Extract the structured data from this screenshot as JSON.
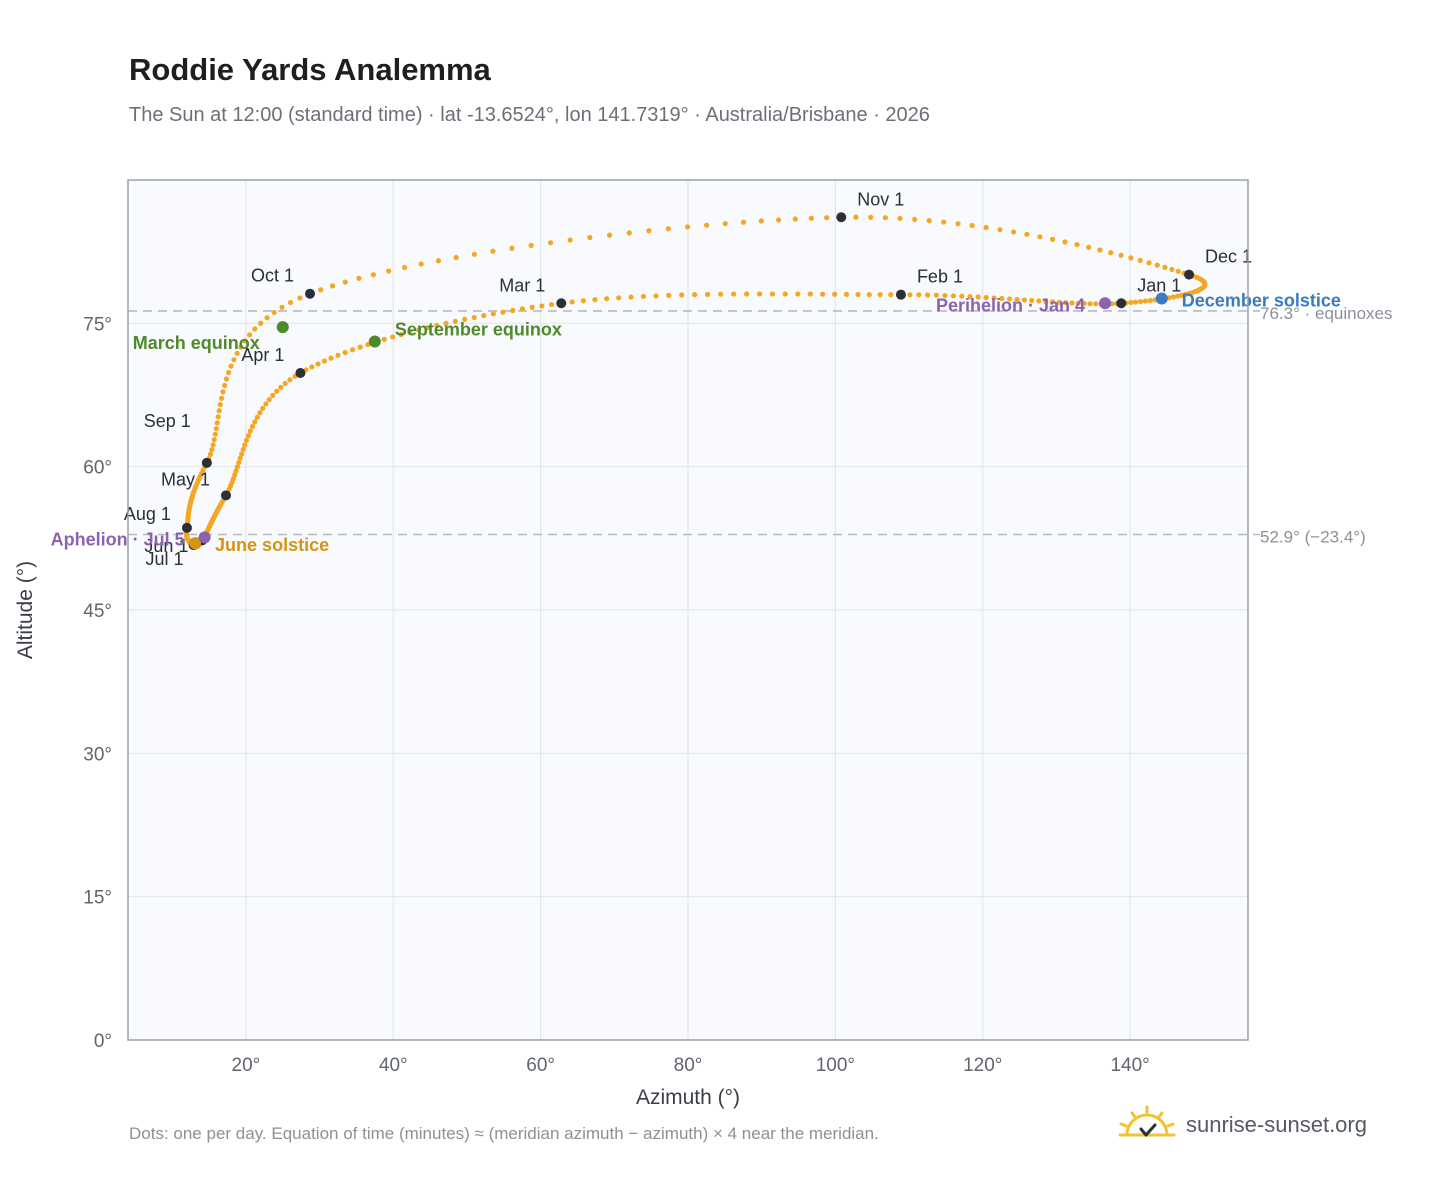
{
  "title": "Roddie Yards Analemma",
  "subtitle": "The Sun at 12:00 (standard time) · lat -13.6524°, lon 141.7319° · Australia/Brisbane · 2026",
  "footnote": "Dots: one per day. Equation of time (minutes) ≈ (meridian azimuth − azimuth) × 4 near the meridian.",
  "brand": {
    "name": "sunrise-sunset.org",
    "logo_icon": "sun-check-icon"
  },
  "colors": {
    "curve": "#f5a623",
    "month_marker": "#2b2f36",
    "equinox": "#4f8a2a",
    "june_solstice": "#d49512",
    "december_solstice": "#3a7bbf",
    "apsis": "#8b62b0",
    "reference_line": "#b5bac2",
    "plot_background": "#f8fafd",
    "grid": "#e3e7ec",
    "frame": "#98a1ad"
  },
  "chart_data": {
    "type": "scatter",
    "xlabel": "Azimuth (°)",
    "ylabel": "Altitude (°)",
    "xlim": [
      4,
      156
    ],
    "ylim": [
      0,
      90
    ],
    "x_ticks": [
      20,
      40,
      60,
      80,
      100,
      120,
      140
    ],
    "x_tick_labels": [
      "20°",
      "40°",
      "60°",
      "80°",
      "100°",
      "120°",
      "140°"
    ],
    "y_ticks": [
      0,
      15,
      30,
      45,
      60,
      75
    ],
    "y_tick_labels": [
      "0°",
      "15°",
      "30°",
      "45°",
      "60°",
      "75°"
    ],
    "grid": true,
    "reference_lines": [
      {
        "y": 76.3,
        "label": "76.3° · equinoxes"
      },
      {
        "y": 52.9,
        "label": "52.9° (−23.4°)"
      }
    ],
    "month_markers": [
      {
        "label": "Jan 1",
        "az": 138.8,
        "alt": 77.1
      },
      {
        "label": "Feb 1",
        "az": 108.9,
        "alt": 78.0
      },
      {
        "label": "Mar 1",
        "az": 62.8,
        "alt": 77.1
      },
      {
        "label": "Apr 1",
        "az": 27.4,
        "alt": 69.8
      },
      {
        "label": "May 1",
        "az": 17.3,
        "alt": 57.0
      },
      {
        "label": "Jun 1",
        "az": 14.1,
        "alt": 52.3
      },
      {
        "label": "Jul 1",
        "az": 12.9,
        "alt": 51.8
      },
      {
        "label": "Aug 1",
        "az": 12.0,
        "alt": 53.6
      },
      {
        "label": "Sep 1",
        "az": 14.7,
        "alt": 60.4
      },
      {
        "label": "Oct 1",
        "az": 28.7,
        "alt": 78.1
      },
      {
        "label": "Nov 1",
        "az": 100.8,
        "alt": 86.1
      },
      {
        "label": "Dec 1",
        "az": 148.0,
        "alt": 80.1
      }
    ],
    "events": [
      {
        "label": "March equinox",
        "az": 25.0,
        "alt": 74.6,
        "color_key": "equinox"
      },
      {
        "label": "September equinox",
        "az": 37.5,
        "alt": 73.1,
        "color_key": "equinox"
      },
      {
        "label": "June solstice",
        "az": 13.1,
        "alt": 52.0,
        "color_key": "june_solstice"
      },
      {
        "label": "December solstice",
        "az": 144.3,
        "alt": 77.6,
        "color_key": "december_solstice"
      },
      {
        "label": "Perihelion · Jan 4",
        "az": 136.6,
        "alt": 77.1,
        "color_key": "apsis"
      },
      {
        "label": "Aphelion · Jul 5",
        "az": 14.4,
        "alt": 52.6,
        "color_key": "apsis"
      }
    ]
  }
}
